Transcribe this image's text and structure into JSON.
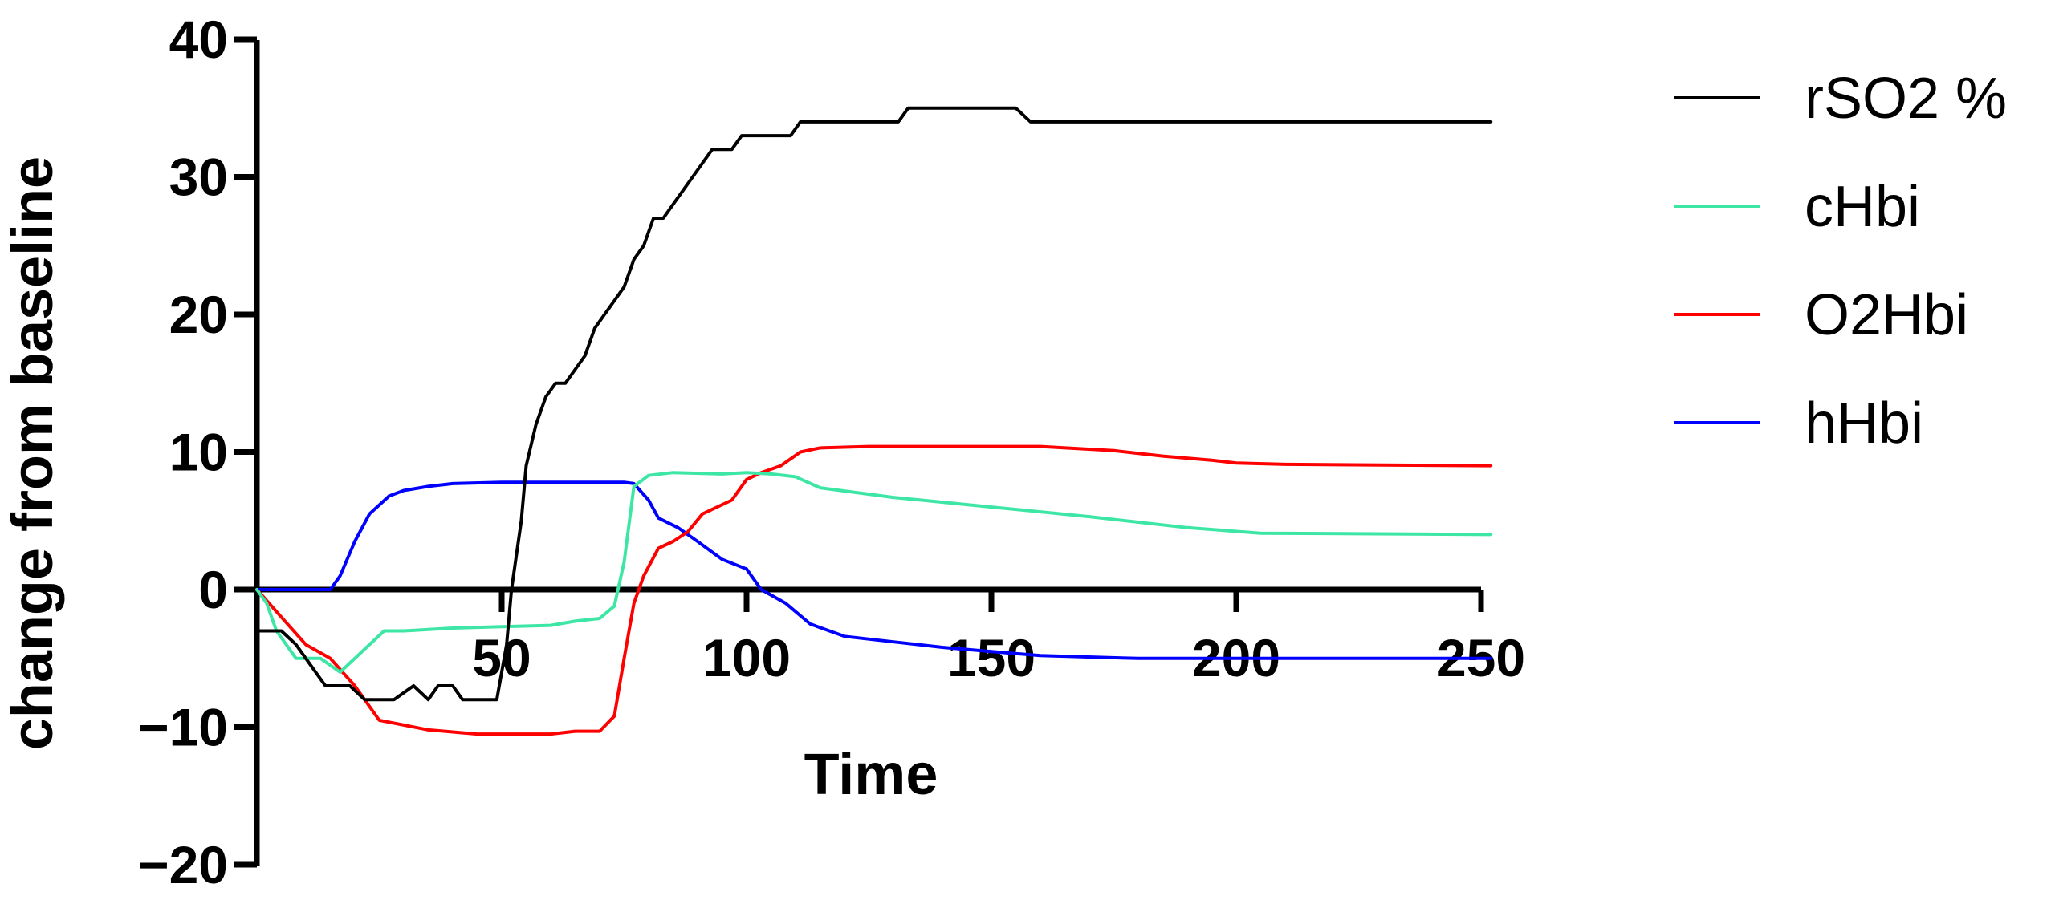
{
  "chart_data": {
    "type": "line",
    "title": "",
    "xlabel": "Time",
    "ylabel": "change from baseline",
    "xlim": [
      0,
      250
    ],
    "ylim": [
      -20,
      40
    ],
    "xticks": [
      50,
      100,
      150,
      200,
      250
    ],
    "yticks": [
      -20,
      -10,
      0,
      10,
      20,
      30,
      40
    ],
    "x_tick_labels": [
      "50",
      "100",
      "150",
      "200",
      "250"
    ],
    "y_tick_labels": [
      "−20",
      "−10",
      "0",
      "10",
      "20",
      "30",
      "40"
    ],
    "grid": false,
    "legend_position": "right",
    "series": [
      {
        "name": "rSO2 %",
        "color": "#000000",
        "points": [
          [
            0,
            -3
          ],
          [
            5,
            -3
          ],
          [
            8,
            -4
          ],
          [
            10,
            -5
          ],
          [
            14,
            -7
          ],
          [
            19,
            -7
          ],
          [
            22,
            -8
          ],
          [
            28,
            -8
          ],
          [
            32,
            -7
          ],
          [
            35,
            -8
          ],
          [
            37,
            -7
          ],
          [
            40,
            -7
          ],
          [
            42,
            -8
          ],
          [
            46,
            -8
          ],
          [
            49,
            -8
          ],
          [
            51,
            -4
          ],
          [
            52,
            0
          ],
          [
            54,
            5
          ],
          [
            55,
            9
          ],
          [
            57,
            12
          ],
          [
            59,
            14
          ],
          [
            61,
            15
          ],
          [
            63,
            15
          ],
          [
            65,
            16
          ],
          [
            67,
            17
          ],
          [
            69,
            19
          ],
          [
            71,
            20
          ],
          [
            73,
            21
          ],
          [
            75,
            22
          ],
          [
            77,
            24
          ],
          [
            79,
            25
          ],
          [
            81,
            27
          ],
          [
            83,
            27
          ],
          [
            85,
            28
          ],
          [
            87,
            29
          ],
          [
            89,
            30
          ],
          [
            91,
            31
          ],
          [
            93,
            32
          ],
          [
            97,
            32
          ],
          [
            99,
            33
          ],
          [
            105,
            33
          ],
          [
            109,
            33
          ],
          [
            111,
            34
          ],
          [
            131,
            34
          ],
          [
            133,
            35
          ],
          [
            155,
            35
          ],
          [
            158,
            34
          ],
          [
            252,
            34
          ]
        ]
      },
      {
        "name": "cHbi",
        "color": "#3ee6a6",
        "points": [
          [
            0,
            0
          ],
          [
            2,
            -1
          ],
          [
            4,
            -3
          ],
          [
            6,
            -4
          ],
          [
            8,
            -5
          ],
          [
            13,
            -5
          ],
          [
            17,
            -6
          ],
          [
            20,
            -5
          ],
          [
            23,
            -4
          ],
          [
            26,
            -3
          ],
          [
            30,
            -3
          ],
          [
            40,
            -2.8
          ],
          [
            50,
            -2.7
          ],
          [
            60,
            -2.6
          ],
          [
            65,
            -2.3
          ],
          [
            70,
            -2.1
          ],
          [
            73,
            -1.2
          ],
          [
            75,
            2
          ],
          [
            77,
            7.5
          ],
          [
            80,
            8.3
          ],
          [
            85,
            8.5
          ],
          [
            95,
            8.4
          ],
          [
            100,
            8.5
          ],
          [
            105,
            8.4
          ],
          [
            110,
            8.2
          ],
          [
            115,
            7.4
          ],
          [
            130,
            6.7
          ],
          [
            150,
            6
          ],
          [
            170,
            5.3
          ],
          [
            190,
            4.5
          ],
          [
            205,
            4.1
          ],
          [
            252,
            4
          ]
        ]
      },
      {
        "name": "O2Hbi",
        "color": "#ff0000",
        "points": [
          [
            0,
            0
          ],
          [
            5,
            -2
          ],
          [
            10,
            -4
          ],
          [
            15,
            -5
          ],
          [
            20,
            -7
          ],
          [
            25,
            -9.5
          ],
          [
            35,
            -10.2
          ],
          [
            45,
            -10.5
          ],
          [
            60,
            -10.5
          ],
          [
            65,
            -10.3
          ],
          [
            70,
            -10.3
          ],
          [
            73,
            -9.2
          ],
          [
            75,
            -5
          ],
          [
            77,
            -1
          ],
          [
            79,
            1
          ],
          [
            82,
            3
          ],
          [
            85,
            3.5
          ],
          [
            88,
            4.2
          ],
          [
            91,
            5.5
          ],
          [
            94,
            6
          ],
          [
            97,
            6.5
          ],
          [
            100,
            8
          ],
          [
            103,
            8.5
          ],
          [
            107,
            9
          ],
          [
            111,
            10
          ],
          [
            115,
            10.3
          ],
          [
            125,
            10.4
          ],
          [
            160,
            10.4
          ],
          [
            175,
            10.1
          ],
          [
            185,
            9.7
          ],
          [
            195,
            9.4
          ],
          [
            200,
            9.2
          ],
          [
            210,
            9.1
          ],
          [
            252,
            9
          ]
        ]
      },
      {
        "name": "hHbi",
        "color": "#0000ff",
        "points": [
          [
            0,
            0
          ],
          [
            15,
            0
          ],
          [
            17,
            1
          ],
          [
            20,
            3.5
          ],
          [
            23,
            5.5
          ],
          [
            27,
            6.8
          ],
          [
            30,
            7.2
          ],
          [
            35,
            7.5
          ],
          [
            40,
            7.7
          ],
          [
            50,
            7.8
          ],
          [
            75,
            7.8
          ],
          [
            77,
            7.7
          ],
          [
            80,
            6.5
          ],
          [
            82,
            5.2
          ],
          [
            86,
            4.5
          ],
          [
            90,
            3.5
          ],
          [
            95,
            2.2
          ],
          [
            100,
            1.5
          ],
          [
            103,
            0
          ],
          [
            108,
            -1
          ],
          [
            113,
            -2.5
          ],
          [
            120,
            -3.4
          ],
          [
            130,
            -3.8
          ],
          [
            140,
            -4.2
          ],
          [
            150,
            -4.5
          ],
          [
            160,
            -4.8
          ],
          [
            180,
            -5
          ],
          [
            252,
            -5
          ]
        ]
      }
    ]
  }
}
